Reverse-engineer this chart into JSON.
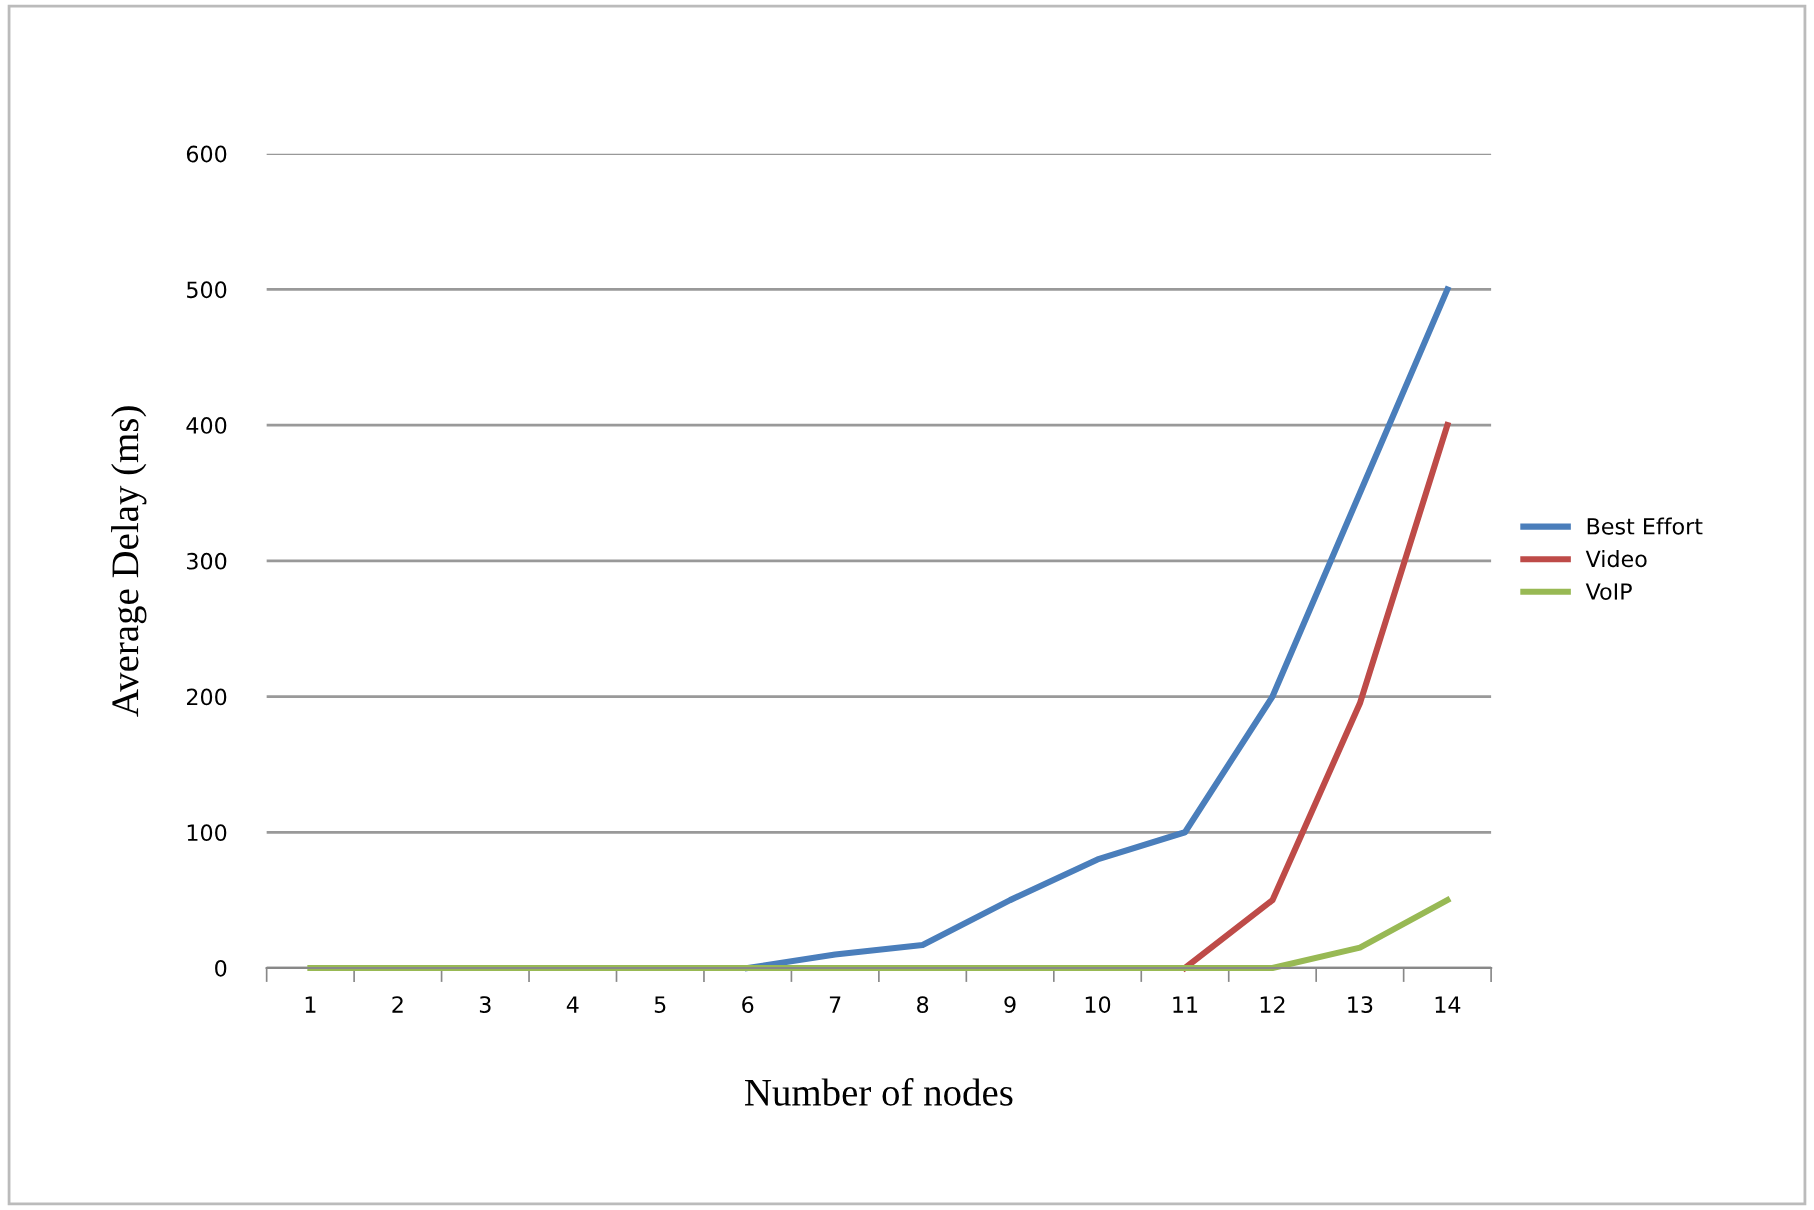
{
  "chart_data": {
    "type": "line",
    "xlabel": "Number of nodes",
    "ylabel": "Average Delay (ms)",
    "categories": [
      "1",
      "2",
      "3",
      "4",
      "5",
      "6",
      "7",
      "8",
      "9",
      "10",
      "11",
      "12",
      "13",
      "14"
    ],
    "series": [
      {
        "name": "Best Effort",
        "color": "#4a7ebb",
        "values": [
          null,
          null,
          null,
          null,
          null,
          0,
          10,
          17,
          50,
          80,
          100,
          200,
          350,
          500
        ]
      },
      {
        "name": "Video",
        "color": "#be4b48",
        "values": [
          null,
          null,
          null,
          null,
          null,
          null,
          null,
          null,
          null,
          null,
          0,
          50,
          195,
          400
        ]
      },
      {
        "name": "VoIP",
        "color": "#98b954",
        "values": [
          0,
          0,
          0,
          0,
          0,
          0,
          0,
          0,
          0,
          0,
          0,
          0,
          15,
          50
        ]
      }
    ],
    "ylim": [
      0,
      600
    ],
    "yticks": [
      0,
      100,
      200,
      300,
      400,
      500,
      600
    ],
    "grid": "y",
    "legend": "right",
    "marker": "none",
    "line_style": "solid"
  }
}
